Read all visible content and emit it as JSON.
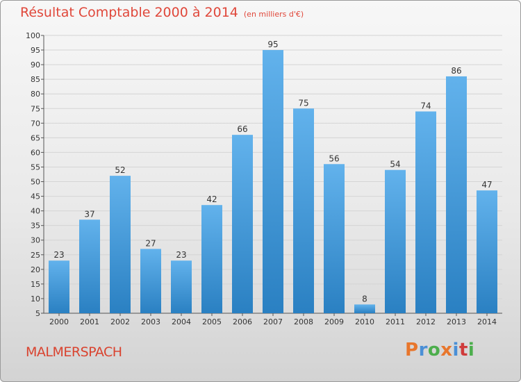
{
  "header": {
    "title": "Résultat Comptable 2000 à 2014",
    "subtitle": "(en milliers d'€)"
  },
  "footer": {
    "commune": "MALMERSPACH",
    "logo_text": "Proxiti",
    "logo_colors": [
      "#e8762c",
      "#4a8fd6",
      "#4cae4c",
      "#e8762c",
      "#4a8fd6",
      "#cf3b3b",
      "#4cae4c"
    ]
  },
  "colors": {
    "bar_top": "#62b2ec",
    "bar_bottom": "#2a80c2",
    "title": "#e0473a",
    "label": "#333333"
  },
  "chart_data": {
    "type": "bar",
    "categories": [
      "2000",
      "2001",
      "2002",
      "2003",
      "2004",
      "2005",
      "2006",
      "2007",
      "2008",
      "2009",
      "2010",
      "2011",
      "2012",
      "2013",
      "2014"
    ],
    "values": [
      23,
      37,
      52,
      27,
      23,
      42,
      66,
      95,
      75,
      56,
      8,
      54,
      74,
      86,
      47
    ],
    "yticks": [
      5,
      10,
      15,
      20,
      25,
      30,
      35,
      40,
      45,
      50,
      55,
      60,
      65,
      70,
      75,
      80,
      85,
      90,
      95,
      100
    ],
    "ylim": [
      5,
      100
    ],
    "grid": true,
    "legend": "none",
    "title": "Résultat Comptable 2000 à 2014",
    "xlabel": "",
    "ylabel": ""
  }
}
